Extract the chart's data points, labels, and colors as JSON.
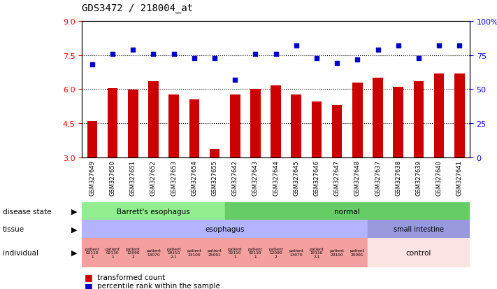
{
  "title": "GDS3472 / 218004_at",
  "samples": [
    "GSM327649",
    "GSM327650",
    "GSM327651",
    "GSM327652",
    "GSM327653",
    "GSM327654",
    "GSM327655",
    "GSM327642",
    "GSM327643",
    "GSM327644",
    "GSM327645",
    "GSM327646",
    "GSM327647",
    "GSM327648",
    "GSM327637",
    "GSM327638",
    "GSM327639",
    "GSM327640",
    "GSM327641"
  ],
  "bar_values": [
    4.6,
    6.05,
    5.98,
    6.35,
    5.75,
    5.55,
    3.35,
    5.75,
    6.0,
    6.15,
    5.75,
    5.45,
    5.3,
    6.3,
    6.5,
    6.1,
    6.35,
    6.7,
    6.7
  ],
  "dot_values": [
    68,
    76,
    79,
    76,
    76,
    73,
    73,
    57,
    76,
    76,
    82,
    73,
    69,
    72,
    79,
    82,
    73,
    82,
    82
  ],
  "ylim_left": [
    3,
    9
  ],
  "ylim_right": [
    0,
    100
  ],
  "yticks_left": [
    3,
    4.5,
    6,
    7.5,
    9
  ],
  "yticks_right": [
    0,
    25,
    50,
    75,
    100
  ],
  "bar_color": "#cc0000",
  "dot_color": "#0000cc",
  "disease_state_colors": [
    "#90ee90",
    "#66cc66"
  ],
  "tissue_color_esoph": "#b3b3ff",
  "tissue_color_intestine": "#9999dd",
  "individual_color_esophagus": "#f4a0a0",
  "individual_color_control": "#fce4e4",
  "tick_bg_color": "#d0d0d0",
  "legend_bar_label": "transformed count",
  "legend_dot_label": "percentile rank within the sample",
  "ind_labels": [
    "patient\n02110\n1",
    "patient\n02130\n1",
    "patient\n12090\n2",
    "patient\n13070",
    "patient\n19110\n2-1",
    "patient\n23100",
    "patient\n25091",
    "patient\n02110\n1",
    "patient\n02130\n1",
    "patient\n12090\n2",
    "patient\n13070",
    "patient\n19110\n2-1",
    "patient\n23100",
    "patient\n25091"
  ]
}
